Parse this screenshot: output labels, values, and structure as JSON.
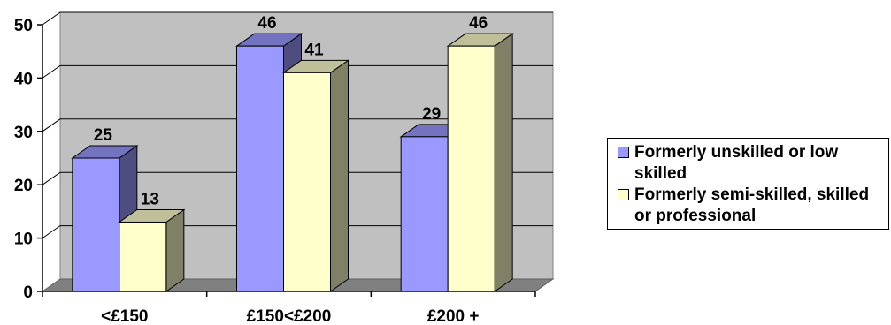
{
  "chart_data": {
    "type": "bar",
    "categories": [
      "<£150",
      "£150<£200",
      "£200 +"
    ],
    "series": [
      {
        "name": "Formerly unskilled or low skilled",
        "values": [
          25,
          46,
          29
        ],
        "color": "#9999FF"
      },
      {
        "name": "Formerly semi-skilled, skilled or professional",
        "values": [
          13,
          41,
          46
        ],
        "color": "#FFFFCC"
      }
    ],
    "ylim": [
      0,
      50
    ],
    "yticks": [
      0,
      10,
      20,
      30,
      40,
      50
    ],
    "grid": true,
    "style": "3d-column",
    "plot_background": "#C0C0C0",
    "legend_position": "right"
  }
}
